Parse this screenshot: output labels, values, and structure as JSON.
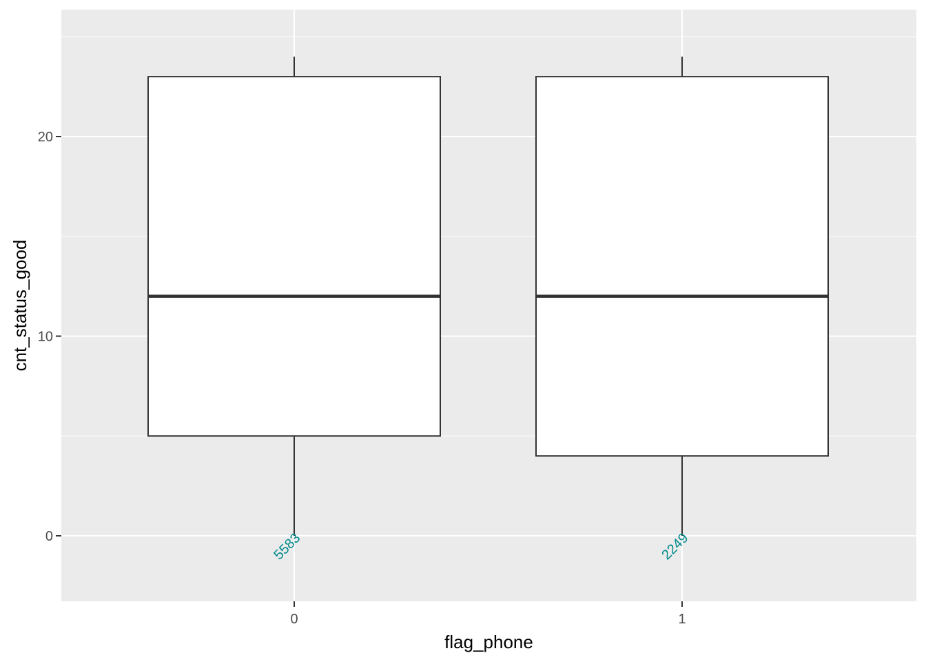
{
  "chart_data": {
    "type": "boxplot",
    "xlabel": "flag_phone",
    "ylabel": "cnt_status_good",
    "categories": [
      "0",
      "1"
    ],
    "y_ticks": [
      "0",
      "10",
      "20"
    ],
    "ylim": [
      -3.3,
      26.5
    ],
    "grid": true,
    "boxes": [
      {
        "category": "0",
        "whisker_low": 0,
        "q1": 5,
        "median": 12,
        "q3": 23,
        "whisker_high": 24,
        "count": "5583"
      },
      {
        "category": "1",
        "whisker_low": 0,
        "q1": 4,
        "median": 12,
        "q3": 23,
        "whisker_high": 24,
        "count": "2249"
      }
    ],
    "colors": {
      "panel_background": "#ebebeb",
      "grid": "#ffffff",
      "box_fill": "#ffffff",
      "box_line": "#333333",
      "count_label": "#008b8b",
      "tick_label": "#4d4d4d"
    }
  }
}
